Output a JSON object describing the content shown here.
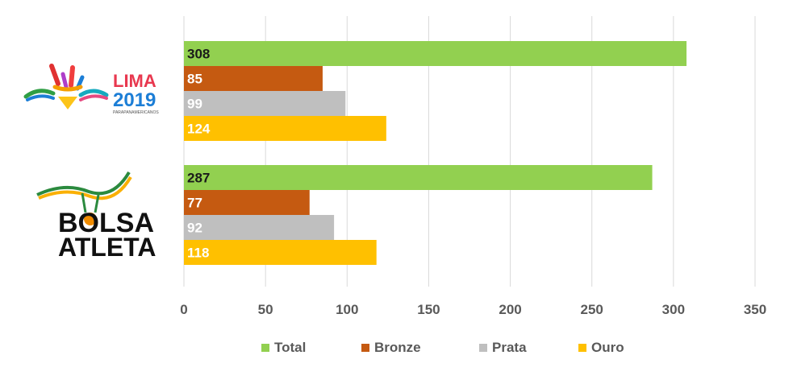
{
  "chart_data": {
    "type": "bar",
    "orientation": "horizontal",
    "categories": [
      "LIMA 2019 PARAPANAMERICANOS",
      "BOLSA ATLETA"
    ],
    "series": [
      {
        "name": "Total",
        "color": "#92d050",
        "values": [
          308,
          287
        ],
        "label_color": "#1a1a1a"
      },
      {
        "name": "Bronze",
        "color": "#c55a11",
        "values": [
          85,
          77
        ],
        "label_color": "#ffffff"
      },
      {
        "name": "Prata",
        "color": "#bfbfbf",
        "values": [
          99,
          92
        ],
        "label_color": "#ffffff"
      },
      {
        "name": "Ouro",
        "color": "#ffc000",
        "values": [
          124,
          118
        ],
        "label_color": "#ffffff"
      }
    ],
    "xlim": [
      0,
      350
    ],
    "xticks": [
      "0",
      "50",
      "100",
      "150",
      "200",
      "250",
      "300",
      "350"
    ],
    "grid": true,
    "legend_position": "bottom"
  },
  "logos": {
    "lima": {
      "name": "LIMA",
      "year": "2019",
      "sub": "PARAPANAMERICANOS"
    },
    "bolsa": {
      "line1": "BOLSA",
      "line2": "ATLETA"
    }
  }
}
